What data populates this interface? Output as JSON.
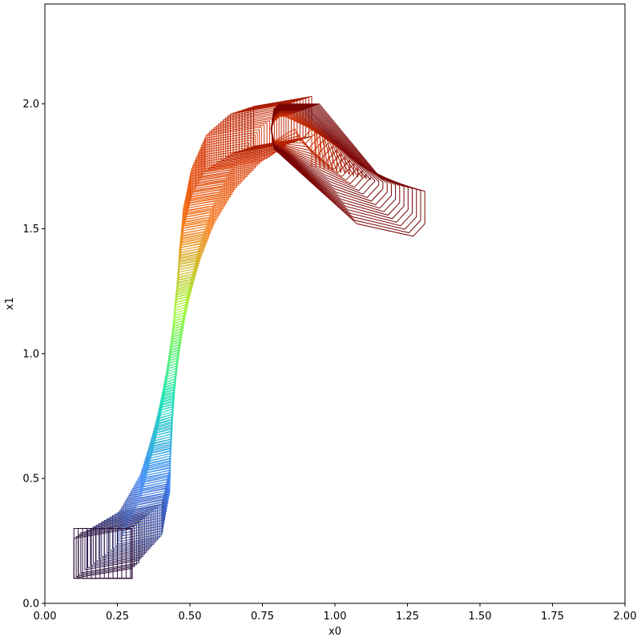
{
  "chart_data": {
    "type": "line",
    "title": "",
    "xlabel": "x0",
    "ylabel": "x1",
    "xlim": [
      0.0,
      2.0
    ],
    "ylim": [
      0.0,
      2.4
    ],
    "xticks": [
      "0.00",
      "0.25",
      "0.50",
      "0.75",
      "1.00",
      "1.25",
      "1.50",
      "1.75",
      "2.00"
    ],
    "yticks": [
      "0.0",
      "0.5",
      "1.0",
      "1.5",
      "2.0"
    ],
    "grid": false,
    "colormap": "turbo",
    "description_of_series": "sequence of reachable-set polygons over time, colored from dark purple (start) to dark red (end)",
    "initial_set": {
      "x": [
        0.1,
        0.3
      ],
      "y": [
        0.1,
        0.3
      ]
    },
    "final_set_extent": {
      "x": [
        0.77,
        1.31
      ],
      "y": [
        1.47,
        2.0
      ]
    },
    "centerline": [
      [
        0.2,
        0.2
      ],
      [
        0.33,
        0.32
      ],
      [
        0.38,
        0.48
      ],
      [
        0.41,
        0.7
      ],
      [
        0.44,
        0.95
      ],
      [
        0.47,
        1.2
      ],
      [
        0.5,
        1.4
      ],
      [
        0.53,
        1.55
      ],
      [
        0.58,
        1.7
      ],
      [
        0.65,
        1.82
      ],
      [
        0.74,
        1.9
      ],
      [
        0.82,
        1.93
      ]
    ],
    "colors": {
      "start": "#30123b",
      "blue": "#4686fb",
      "cyan": "#1ae4b6",
      "green": "#a2fc3c",
      "orange": "#fb8022",
      "red": "#d23105",
      "end": "#7a0403"
    }
  }
}
